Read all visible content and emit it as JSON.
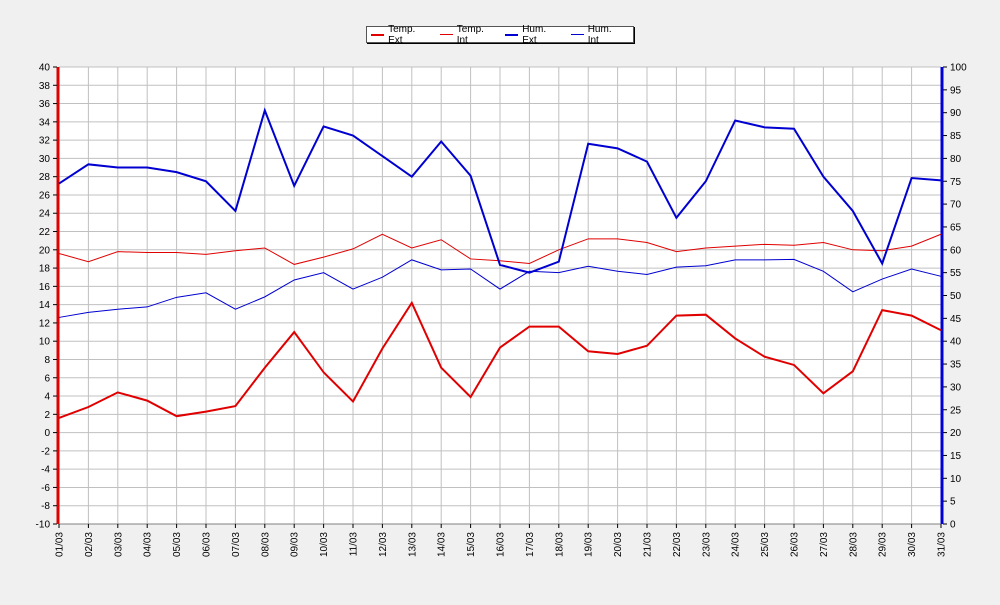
{
  "chart_data": {
    "type": "line",
    "categories": [
      "01/03",
      "02/03",
      "03/03",
      "04/03",
      "05/03",
      "06/03",
      "07/03",
      "08/03",
      "09/03",
      "10/03",
      "11/03",
      "12/03",
      "13/03",
      "14/03",
      "15/03",
      "16/03",
      "17/03",
      "18/03",
      "19/03",
      "20/03",
      "21/03",
      "22/03",
      "23/03",
      "24/03",
      "25/03",
      "26/03",
      "27/03",
      "28/03",
      "29/03",
      "30/03",
      "31/03"
    ],
    "y_left": {
      "min": -10,
      "max": 40,
      "step": 2
    },
    "y_right": {
      "min": 0,
      "max": 100,
      "step": 5
    },
    "grid": true,
    "legend_position": "top",
    "series": [
      {
        "name": "Temp. Ext",
        "axis": "left",
        "color": "#e00000",
        "width": 2,
        "values": [
          1.6,
          2.8,
          4.4,
          3.5,
          1.8,
          2.3,
          2.9,
          7.1,
          11.0,
          6.6,
          3.4,
          9.2,
          14.2,
          7.1,
          3.9,
          9.3,
          11.6,
          11.6,
          8.9,
          8.6,
          9.5,
          12.8,
          12.9,
          10.3,
          8.3,
          7.4,
          4.3,
          6.7,
          13.4,
          12.8,
          11.2
        ]
      },
      {
        "name": "Temp. Int",
        "axis": "left",
        "color": "#e00000",
        "width": 1,
        "values": [
          19.6,
          18.7,
          19.8,
          19.7,
          19.7,
          19.5,
          19.9,
          20.2,
          18.4,
          19.2,
          20.1,
          21.7,
          20.2,
          21.1,
          19.0,
          18.8,
          18.5,
          20.0,
          21.2,
          21.2,
          20.8,
          19.8,
          20.2,
          20.4,
          20.6,
          20.5,
          20.8,
          20.0,
          19.9,
          20.4,
          21.7
        ]
      },
      {
        "name": "Hum. Ext",
        "axis": "right",
        "color": "#0000d0",
        "width": 2,
        "values": [
          74.5,
          78.7,
          78.0,
          78.0,
          77.0,
          75.0,
          68.5,
          90.5,
          74.0,
          87.0,
          85.0,
          80.5,
          76.0,
          83.7,
          76.2,
          56.7,
          55.0,
          57.4,
          83.2,
          82.2,
          79.3,
          67.0,
          75.0,
          88.3,
          86.8,
          86.5,
          76.0,
          68.5,
          57.0,
          75.7,
          75.2
        ]
      },
      {
        "name": "Hum. Int",
        "axis": "right",
        "color": "#0000d0",
        "width": 1,
        "values": [
          45.2,
          46.3,
          47.0,
          47.5,
          49.6,
          50.6,
          47.0,
          49.7,
          53.4,
          55.0,
          51.4,
          54.0,
          57.8,
          55.6,
          55.8,
          51.4,
          55.3,
          55.0,
          56.4,
          55.3,
          54.6,
          56.2,
          56.5,
          57.8,
          57.8,
          57.9,
          55.3,
          50.8,
          53.6,
          55.8,
          54.2
        ]
      }
    ]
  }
}
